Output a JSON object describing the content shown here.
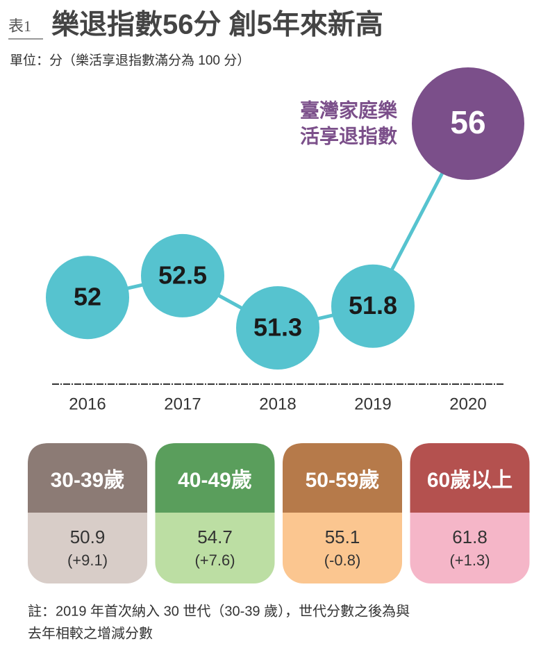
{
  "header": {
    "label": "表1",
    "title": "樂退指數56分 創5年來新高",
    "unit": "單位：分（樂活享退指數滿分為 100 分）"
  },
  "chart_data": {
    "type": "line",
    "series_label": [
      "臺灣家庭樂",
      "活享退指數"
    ],
    "categories": [
      "2016",
      "2017",
      "2018",
      "2019",
      "2020"
    ],
    "values": [
      52,
      52.5,
      51.3,
      51.8,
      56
    ],
    "color": "#56c3cf",
    "point_colors": [
      "#56c3cf",
      "#56c3cf",
      "#56c3cf",
      "#56c3cf",
      "#7b4f8a"
    ],
    "label_color": "#7b4f8a"
  },
  "age_groups": [
    {
      "label": "30-39歲",
      "value": "50.9",
      "change": "(+9.1)",
      "header_color": "#8c7b75",
      "body_color": "#d8cdc8"
    },
    {
      "label": "40-49歲",
      "value": "54.7",
      "change": "(+7.6)",
      "header_color": "#5a9e5c",
      "body_color": "#bcdea3"
    },
    {
      "label": "50-59歲",
      "value": "55.1",
      "change": "(-0.8)",
      "header_color": "#b67a4a",
      "body_color": "#fbc690"
    },
    {
      "label": "60歲以上",
      "value": "61.8",
      "change": "(+1.3)",
      "header_color": "#b4514f",
      "body_color": "#f5b6c8"
    }
  ],
  "note": [
    "註：2019 年首次納入 30 世代（30-39 歲），世代分數之後為與",
    "去年相較之增減分數"
  ]
}
